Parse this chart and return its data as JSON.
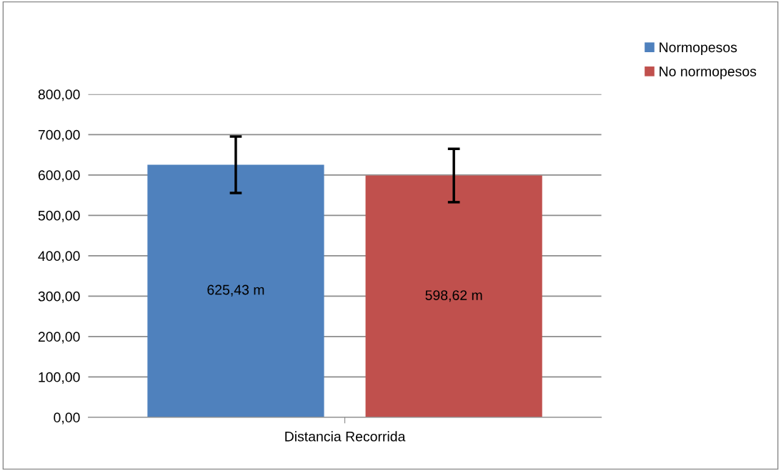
{
  "chart_data": {
    "type": "bar",
    "categories": [
      "Distancia Recorrida"
    ],
    "series": [
      {
        "name": "Normopesos",
        "color": "#4f81bd",
        "values": [
          625.43
        ],
        "errors": [
          70
        ],
        "value_labels": [
          "625,43 m"
        ]
      },
      {
        "name": "No normopesos",
        "color": "#c0504d",
        "values": [
          598.62
        ],
        "errors": [
          66
        ],
        "value_labels": [
          "598,62 m"
        ]
      }
    ],
    "ylim": [
      0,
      800
    ],
    "yticks": [
      {
        "value": 0,
        "label": "0,00"
      },
      {
        "value": 100,
        "label": "100,00"
      },
      {
        "value": 200,
        "label": "200,00"
      },
      {
        "value": 300,
        "label": "300,00"
      },
      {
        "value": 400,
        "label": "400,00"
      },
      {
        "value": 500,
        "label": "500,00"
      },
      {
        "value": 600,
        "label": "600,00"
      },
      {
        "value": 700,
        "label": "700,00"
      },
      {
        "value": 800,
        "label": "800,00"
      }
    ],
    "grid": "y",
    "legend": "top right"
  }
}
